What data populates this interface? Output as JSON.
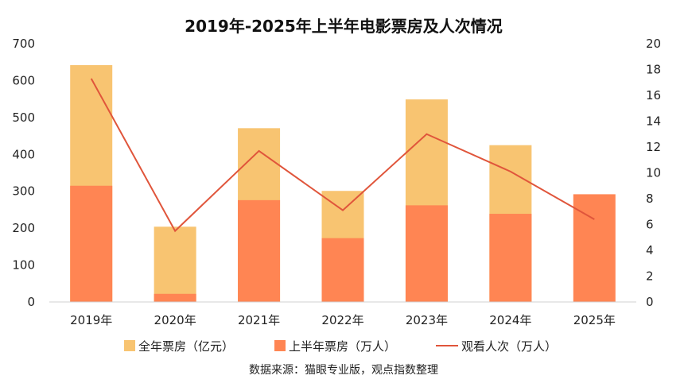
{
  "chart_data": {
    "type": "bar",
    "title": "2019年-2025年上半年电影票房及人次情况",
    "categories": [
      "2019年",
      "2020年",
      "2021年",
      "2022年",
      "2023年",
      "2024年",
      "2025年"
    ],
    "y_left": {
      "min": 0,
      "max": 700,
      "ticks": [
        "0",
        "100",
        "200",
        "300",
        "400",
        "500",
        "600",
        "700"
      ]
    },
    "y_right": {
      "min": 0,
      "max": 20,
      "ticks": [
        "0",
        "2",
        "4",
        "6",
        "8",
        "10",
        "12",
        "14",
        "16",
        "18",
        "20"
      ]
    },
    "series": [
      {
        "name": "全年票房（亿元）",
        "type": "bar",
        "axis": "left",
        "color": "#F8C471",
        "values": [
          642,
          204,
          471,
          301,
          549,
          425,
          null
        ]
      },
      {
        "name": "上半年票房（万人）",
        "type": "bar",
        "axis": "left",
        "color": "#FF8553",
        "values": [
          315,
          22,
          276,
          173,
          262,
          239,
          292
        ]
      },
      {
        "name": "观看人次（万人）",
        "type": "line",
        "axis": "right",
        "color": "#E0553B",
        "values": [
          17.3,
          5.5,
          11.7,
          7.1,
          13.0,
          10.1,
          6.4
        ]
      }
    ],
    "grid": false,
    "legend_position": "bottom",
    "source": "数据来源：猫眼专业版，观点指数整理"
  }
}
